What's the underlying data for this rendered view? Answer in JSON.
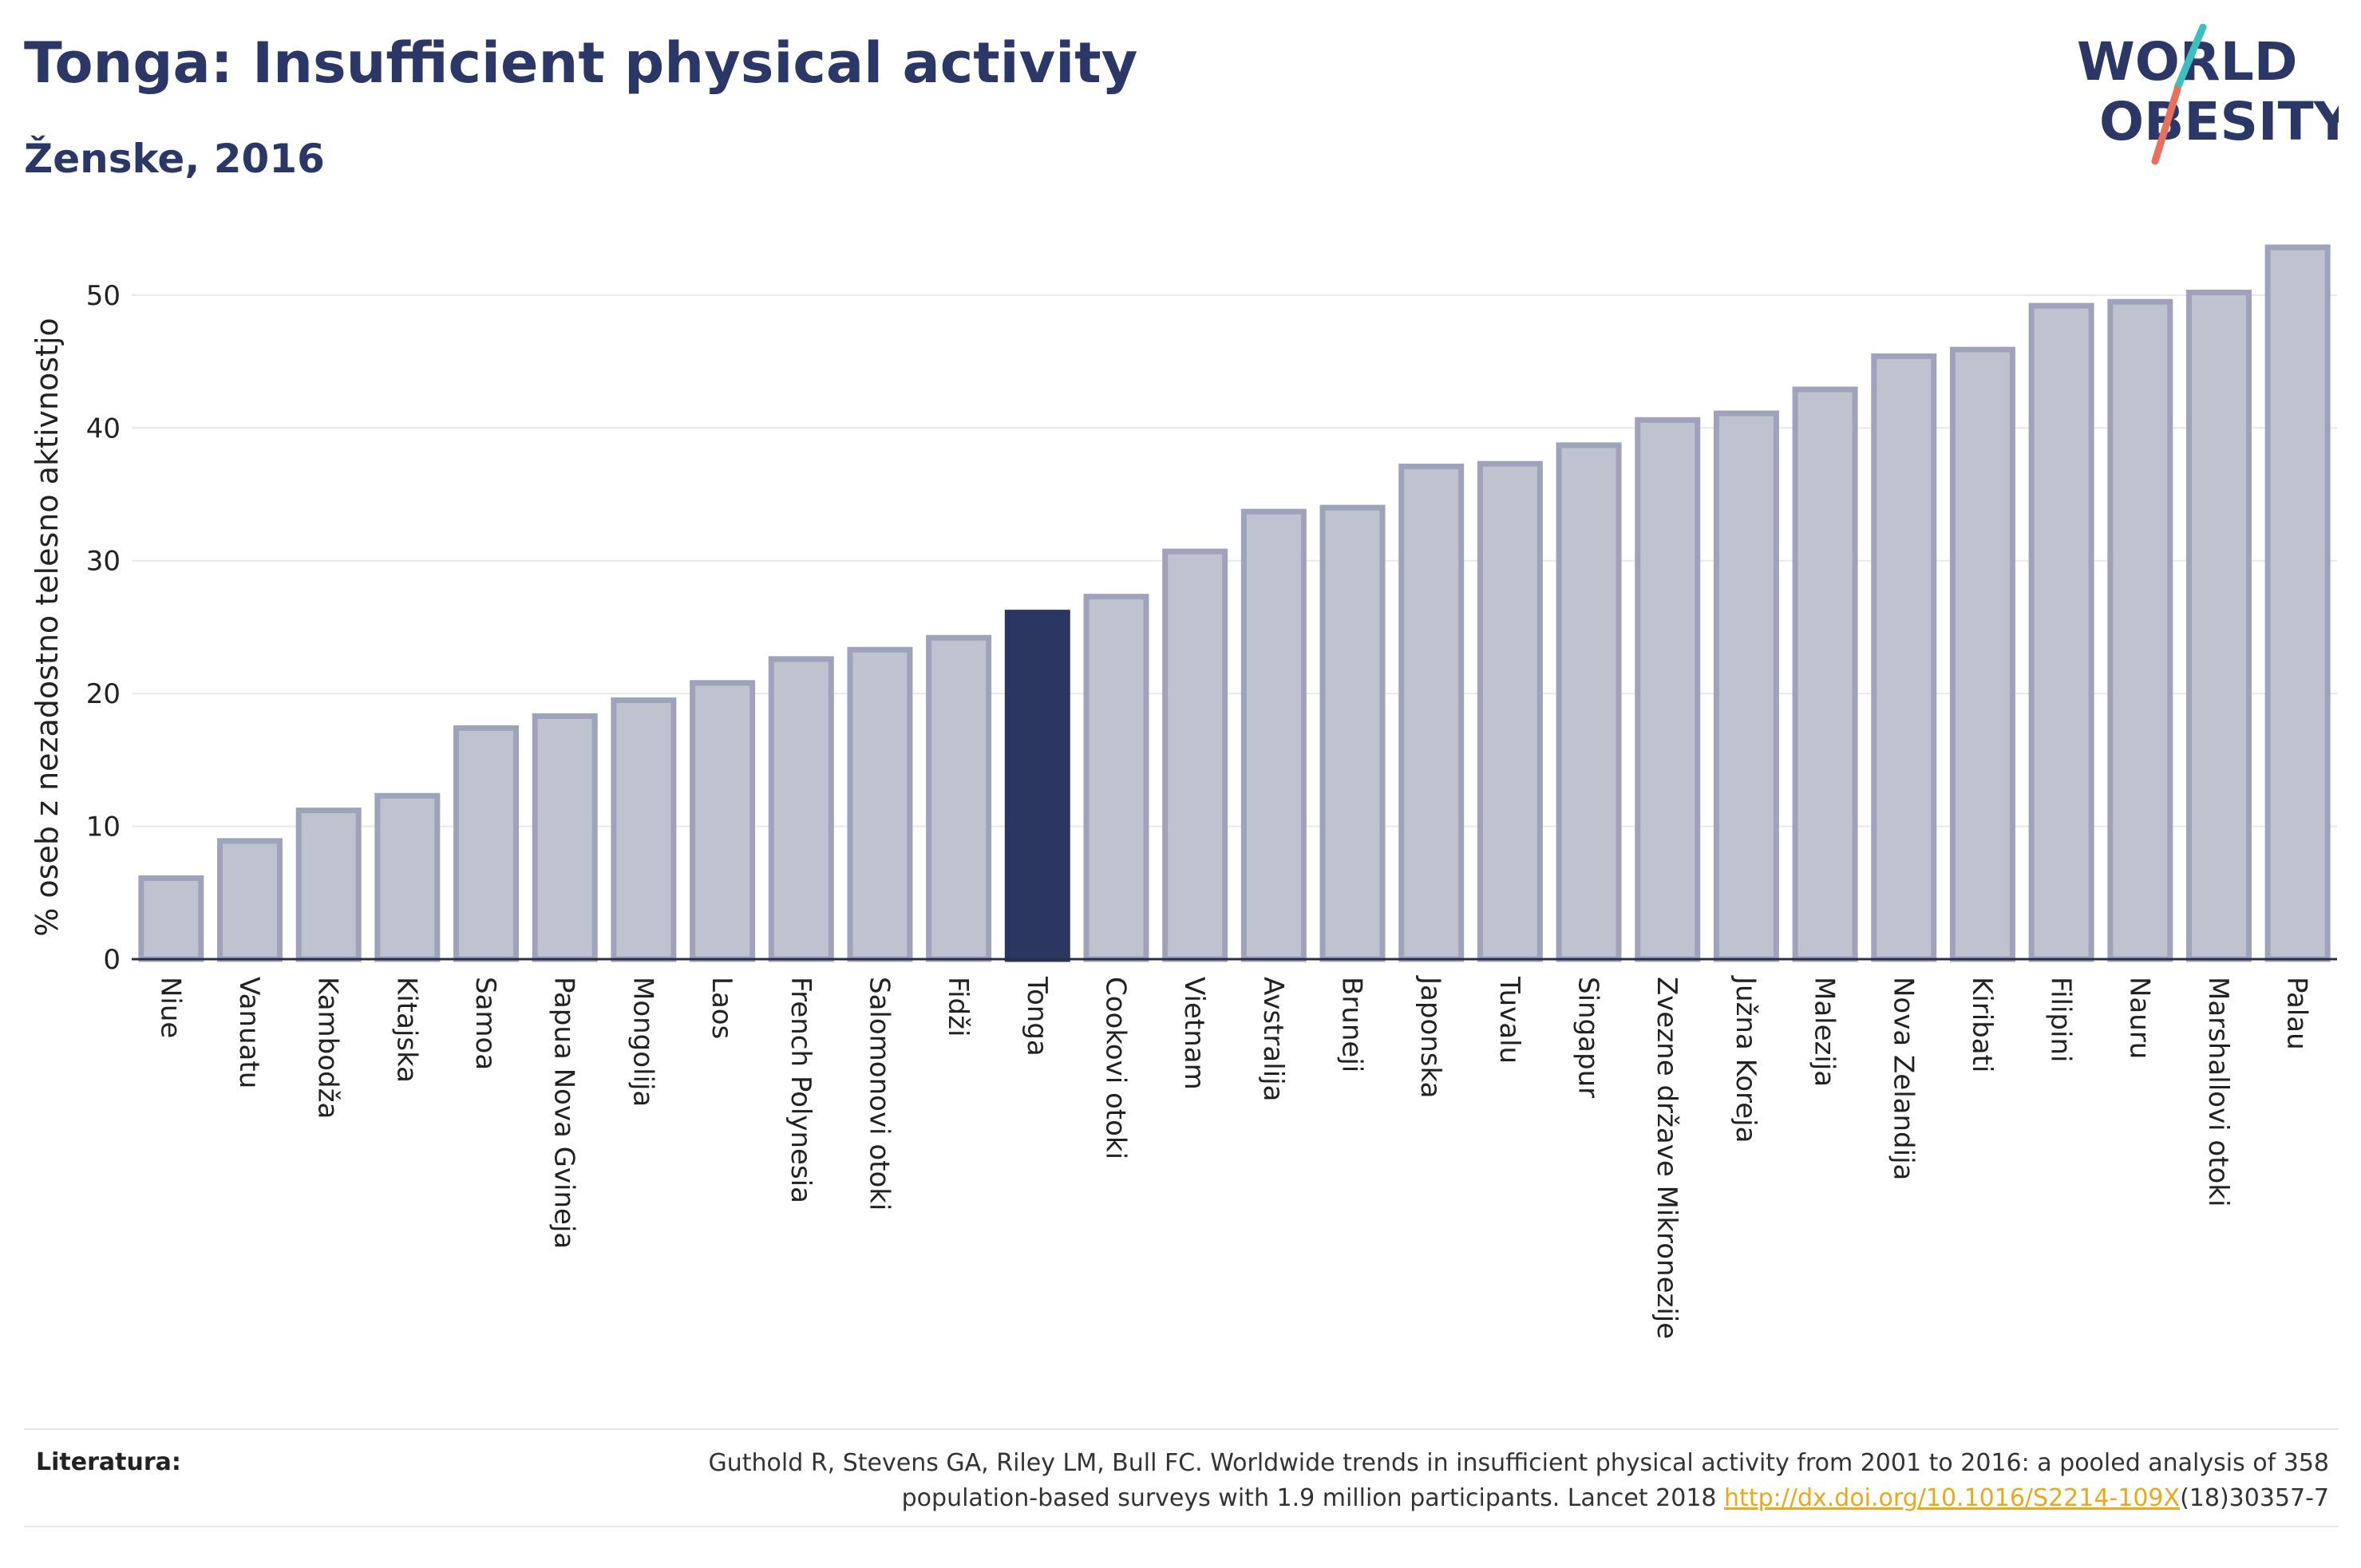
{
  "header": {
    "title": "Tonga: Insufficient physical activity",
    "subtitle": "Ženske, 2016"
  },
  "logo": {
    "line1": "WORLD",
    "line2": "OBESITY",
    "icon": "world-obesity-logo"
  },
  "colors": {
    "highlight": "#2b3661",
    "bar_fill": "#bfc2cf",
    "bar_stroke": "#9ea3bb",
    "grid": "#e8e8ec",
    "axis": "#2b2f45",
    "logo_text": "#2b3766",
    "logo_teal": "#3bbfbf",
    "logo_coral": "#e8705c"
  },
  "chart_data": {
    "type": "bar",
    "ylabel": "% oseb z nezadostno telesno aktivnostjo",
    "ylim": [
      0,
      56
    ],
    "yticks": [
      0,
      10,
      20,
      30,
      40,
      50
    ],
    "grid": true,
    "highlight": "Tonga",
    "categories": [
      "Niue",
      "Vanuatu",
      "Kambodža",
      "Kitajska",
      "Samoa",
      "Papua Nova Gvineja",
      "Mongolija",
      "Laos",
      "French Polynesia",
      "Salomonovi otoki",
      "Fidži",
      "Tonga",
      "Cookovi otoki",
      "Vietnam",
      "Avstralija",
      "Bruneji",
      "Japonska",
      "Tuvalu",
      "Singapur",
      "Zvezne države Mikronezije",
      "Južna Koreja",
      "Malezija",
      "Nova Zelandija",
      "Kiribati",
      "Filipini",
      "Nauru",
      "Marshallovi otoki",
      "Palau"
    ],
    "values": [
      6.1,
      8.9,
      11.2,
      12.3,
      17.4,
      18.3,
      19.5,
      20.8,
      22.6,
      23.3,
      24.2,
      26.1,
      27.3,
      30.7,
      33.7,
      34.0,
      37.1,
      37.3,
      38.7,
      40.6,
      41.1,
      42.9,
      45.4,
      45.9,
      49.2,
      49.5,
      50.2,
      53.6
    ]
  },
  "footer": {
    "label": "Literatura:",
    "text_line1": "Guthold R, Stevens GA, Riley LM, Bull FC. Worldwide trends in insufficient physical activity from 2001 to 2016: a pooled analysis of 358",
    "text_line2_pre": "population-based surveys with 1.9 million participants. Lancet 2018 ",
    "link": "http://dx.doi.org/10.1016/S2214-109X",
    "text_line2_post": "(18)30357-7"
  }
}
